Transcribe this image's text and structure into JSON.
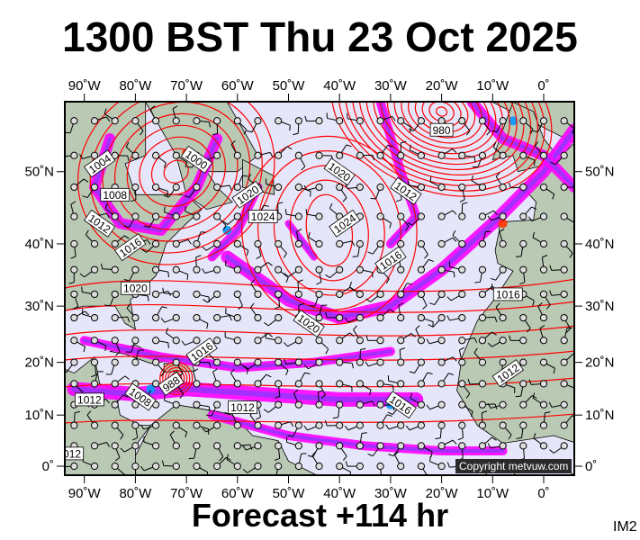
{
  "header": {
    "title": "1300 BST Thu 23 Oct 2025"
  },
  "footer": {
    "forecast": "Forecast +114 hr",
    "image_id_label": "IM2",
    "copyright": "Copyright metvuw.com"
  },
  "map": {
    "projection": "mercator",
    "lon_range": [
      -94,
      6
    ],
    "lat_range": [
      -2,
      57.6
    ],
    "lon_ticks": [
      {
        "lon": -90,
        "label": "90˚W"
      },
      {
        "lon": -80,
        "label": "80˚W"
      },
      {
        "lon": -70,
        "label": "70˚W"
      },
      {
        "lon": -60,
        "label": "60˚W"
      },
      {
        "lon": -50,
        "label": "50˚W"
      },
      {
        "lon": -40,
        "label": "40˚W"
      },
      {
        "lon": -30,
        "label": "30˚W"
      },
      {
        "lon": -20,
        "label": "20˚W"
      },
      {
        "lon": -10,
        "label": "10˚W"
      },
      {
        "lon": 0,
        "label": "0˚"
      }
    ],
    "lat_ticks": [
      {
        "lat": 50,
        "label": "50˚N"
      },
      {
        "lat": 40,
        "label": "40˚N"
      },
      {
        "lat": 30,
        "label": "30˚N"
      },
      {
        "lat": 20,
        "label": "20˚N"
      },
      {
        "lat": 10,
        "label": "10˚N"
      },
      {
        "lat": 0,
        "label": "0˚"
      }
    ],
    "isobar_labels": [
      {
        "value": "1004",
        "lon": -87,
        "lat": 51
      },
      {
        "value": "1008",
        "lon": -84,
        "lat": 47
      },
      {
        "value": "1012",
        "lon": -87,
        "lat": 43
      },
      {
        "value": "1016",
        "lon": -81,
        "lat": 39.5
      },
      {
        "value": "1020",
        "lon": -80,
        "lat": 33
      },
      {
        "value": "1000",
        "lon": -68,
        "lat": 51.5
      },
      {
        "value": "1020",
        "lon": -58,
        "lat": 47
      },
      {
        "value": "1024",
        "lon": -55,
        "lat": 44
      },
      {
        "value": "1020",
        "lon": -40,
        "lat": 50
      },
      {
        "value": "1024",
        "lon": -39,
        "lat": 43
      },
      {
        "value": "980",
        "lon": -20,
        "lat": 55
      },
      {
        "value": "1012",
        "lon": -27,
        "lat": 47.5
      },
      {
        "value": "1016",
        "lon": -30,
        "lat": 37.5
      },
      {
        "value": "1016",
        "lon": -7,
        "lat": 32
      },
      {
        "value": "1020",
        "lon": -46,
        "lat": 27
      },
      {
        "value": "1016",
        "lon": -67,
        "lat": 22
      },
      {
        "value": "1012",
        "lon": -89,
        "lat": 13
      },
      {
        "value": "1008",
        "lon": -79,
        "lat": 13.5
      },
      {
        "value": "988",
        "lon": -73,
        "lat": 16
      },
      {
        "value": "1012",
        "lon": -59,
        "lat": 11.5
      },
      {
        "value": "1016",
        "lon": -28,
        "lat": 12
      },
      {
        "value": "1012",
        "lon": -7,
        "lat": 18
      },
      {
        "value": "1012",
        "lon": -93,
        "lat": 2.5
      }
    ],
    "colors": {
      "ocean": "#e6e6fa",
      "land": "#b9c9b4",
      "isobar": "#ff0000",
      "rain_light": "#ff00ff",
      "rain_mid": "#9933ff",
      "rain_heavy": "#0099ff",
      "rain_extreme": "#ff3300",
      "barb": "#000000"
    }
  }
}
